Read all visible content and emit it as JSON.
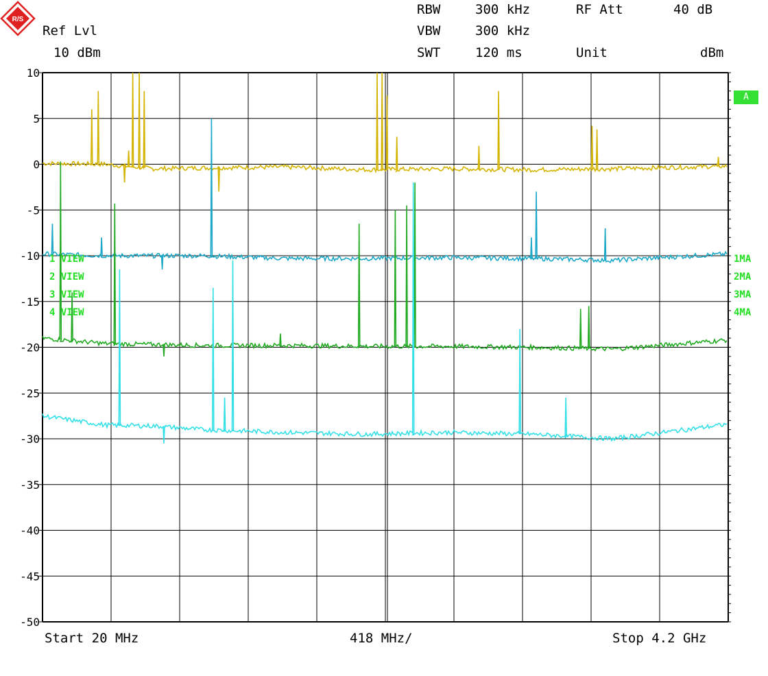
{
  "header": {
    "ref_lvl_label": "Ref Lvl",
    "ref_lvl_value": "10 dBm",
    "rbw_label": "RBW",
    "rbw_value": "300 kHz",
    "vbw_label": "VBW",
    "vbw_value": "300 kHz",
    "swt_label": "SWT",
    "swt_value": "120 ms",
    "rf_att_label": "RF Att",
    "rf_att_value": "40 dB",
    "unit_label": "Unit",
    "unit_value": "dBm"
  },
  "footer": {
    "start": "Start 20 MHz",
    "div": "418 MHz/",
    "stop": "Stop 4.2 GHz"
  },
  "badge": "A",
  "trace_labels_left": [
    "1 VIEW",
    "2 VIEW",
    "3 VIEW",
    "4 VIEW"
  ],
  "trace_labels_right": [
    "1MA",
    "2MA",
    "3MA",
    "4MA"
  ],
  "colors": {
    "trace1": "#d4b400",
    "trace2": "#1ca8c8",
    "trace3": "#22aa22",
    "trace4": "#33e0e8",
    "grid": "#000000",
    "labels": "#22dd22"
  },
  "chart_data": {
    "type": "line",
    "title": "",
    "xlabel": "",
    "ylabel": "",
    "x_unit": "MHz",
    "xlim": [
      20,
      4200
    ],
    "ylim": [
      -50,
      10
    ],
    "y_ticks": [
      10,
      5,
      0,
      -5,
      -10,
      -15,
      -20,
      -25,
      -30,
      -35,
      -40,
      -45,
      -50
    ],
    "x_divisions": 10,
    "grid": true,
    "series": [
      {
        "baseline": [
          [
            20,
            0.1
          ],
          [
            400,
            0
          ],
          [
            700,
            -0.5
          ],
          [
            1000,
            -0.4
          ],
          [
            1500,
            -0.3
          ],
          [
            2000,
            -0.6
          ],
          [
            2500,
            -0.5
          ],
          [
            3000,
            -0.6
          ],
          [
            3500,
            -0.5
          ],
          [
            4200,
            -0.2
          ]
        ],
        "peaks": [
          [
            320,
            6
          ],
          [
            360,
            8
          ],
          [
            520,
            -2
          ],
          [
            545,
            1.5
          ],
          [
            570,
            10
          ],
          [
            610,
            10
          ],
          [
            640,
            8
          ],
          [
            1095,
            -3
          ],
          [
            2060,
            10
          ],
          [
            2090,
            10
          ],
          [
            2120,
            7.5
          ],
          [
            2180,
            3
          ],
          [
            2680,
            2
          ],
          [
            2800,
            8
          ],
          [
            3370,
            4.2
          ],
          [
            3400,
            3.8
          ],
          [
            4140,
            0.8
          ]
        ]
      },
      {
        "baseline": [
          [
            20,
            -9.8
          ],
          [
            400,
            -10
          ],
          [
            1000,
            -10
          ],
          [
            1500,
            -10.3
          ],
          [
            2000,
            -10.3
          ],
          [
            2500,
            -10.2
          ],
          [
            3000,
            -10.3
          ],
          [
            3500,
            -10.5
          ],
          [
            4200,
            -9.8
          ]
        ],
        "peaks": [
          [
            80,
            -6.5
          ],
          [
            380,
            -8
          ],
          [
            750,
            -11.5
          ],
          [
            1050,
            5
          ],
          [
            3000,
            -8
          ],
          [
            3030,
            -3
          ],
          [
            3450,
            -7
          ]
        ]
      },
      {
        "baseline": [
          [
            20,
            -19
          ],
          [
            400,
            -19.6
          ],
          [
            1000,
            -19.8
          ],
          [
            1500,
            -19.8
          ],
          [
            2000,
            -19.9
          ],
          [
            2500,
            -19.9
          ],
          [
            3000,
            -20
          ],
          [
            3500,
            -20.2
          ],
          [
            4200,
            -19.2
          ]
        ],
        "peaks": [
          [
            130,
            0.3
          ],
          [
            200,
            -14
          ],
          [
            460,
            -4.3
          ],
          [
            760,
            -21
          ],
          [
            1470,
            -18.5
          ],
          [
            1950,
            -6.5
          ],
          [
            2170,
            -5
          ],
          [
            2240,
            -4.5
          ],
          [
            2290,
            -2
          ],
          [
            3300,
            -15.8
          ],
          [
            3350,
            -15.5
          ]
        ]
      },
      {
        "baseline": [
          [
            20,
            -27.5
          ],
          [
            400,
            -28.5
          ],
          [
            700,
            -28.6
          ],
          [
            1000,
            -29
          ],
          [
            1500,
            -29.3
          ],
          [
            2000,
            -29.5
          ],
          [
            2500,
            -29.3
          ],
          [
            3000,
            -29.5
          ],
          [
            3500,
            -30
          ],
          [
            4200,
            -28.4
          ]
        ],
        "peaks": [
          [
            490,
            -11.5
          ],
          [
            760,
            -30.5
          ],
          [
            1060,
            -13.5
          ],
          [
            1130,
            -25.5
          ],
          [
            1180,
            -10.5
          ],
          [
            2280,
            -2
          ],
          [
            2930,
            -18
          ],
          [
            3210,
            -25.5
          ]
        ]
      }
    ]
  }
}
